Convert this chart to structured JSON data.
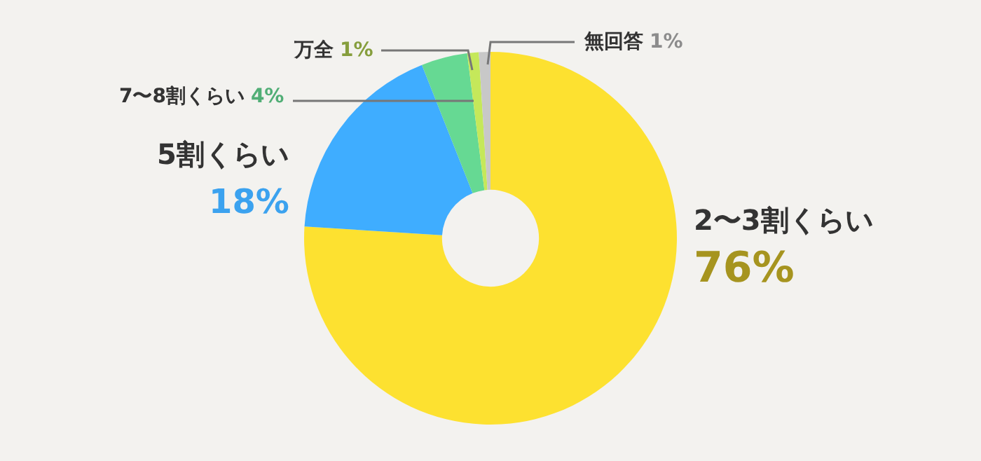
{
  "chart_data": {
    "type": "donut",
    "categories": [
      "2〜3割くらい",
      "5割くらい",
      "7〜8割くらい",
      "万全",
      "無回答"
    ],
    "values": [
      76,
      18,
      4,
      1,
      1
    ],
    "colors": [
      "#fde130",
      "#3fadff",
      "#66d993",
      "#c5e85a",
      "#c8c8c8"
    ],
    "value_labels": [
      "76%",
      "18%",
      "4%",
      "1%",
      "1%"
    ]
  }
}
